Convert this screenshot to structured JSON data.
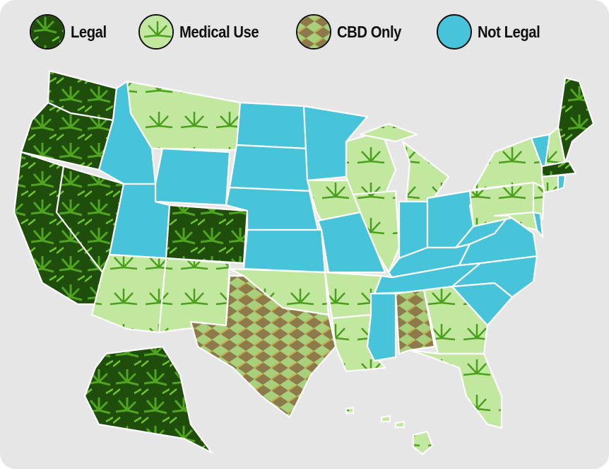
{
  "legend": [
    {
      "key": "legal",
      "label": "Legal"
    },
    {
      "key": "medical",
      "label": "Medical Use"
    },
    {
      "key": "cbd",
      "label": "CBD Only"
    },
    {
      "key": "notlegal",
      "label": "Not Legal"
    }
  ],
  "colors": {
    "legal": "#1f4d0c",
    "medical": "#c2e8a0",
    "cbd": "#8c7a4a",
    "notlegal": "#47c3da",
    "background": "#e6e6e6"
  },
  "states": {
    "WA": "legal",
    "OR": "legal",
    "CA": "legal",
    "NV": "legal",
    "CO": "legal",
    "AK": "legal",
    "ME": "legal",
    "MA": "legal",
    "MT": "medical",
    "AZ": "medical",
    "NM": "medical",
    "OK": "medical",
    "AR": "medical",
    "LA": "medical",
    "IA": "medical",
    "IL": "medical",
    "MI": "medical",
    "WI": "medical",
    "PA": "medical",
    "NY": "medical",
    "NH": "medical",
    "CT": "medical",
    "NJ": "medical",
    "MD": "medical",
    "FL": "medical",
    "GA": "medical",
    "HI": "medical",
    "TX": "cbd",
    "AL": "cbd",
    "ID": "notlegal",
    "UT": "notlegal",
    "WY": "notlegal",
    "ND": "notlegal",
    "SD": "notlegal",
    "NE": "notlegal",
    "KS": "notlegal",
    "MN": "notlegal",
    "MO": "notlegal",
    "IN": "notlegal",
    "OH": "notlegal",
    "KY": "notlegal",
    "TN": "notlegal",
    "MS": "notlegal",
    "SC": "notlegal",
    "NC": "notlegal",
    "VA": "notlegal",
    "WV": "notlegal",
    "VT": "notlegal",
    "RI": "notlegal",
    "DE": "notlegal"
  }
}
